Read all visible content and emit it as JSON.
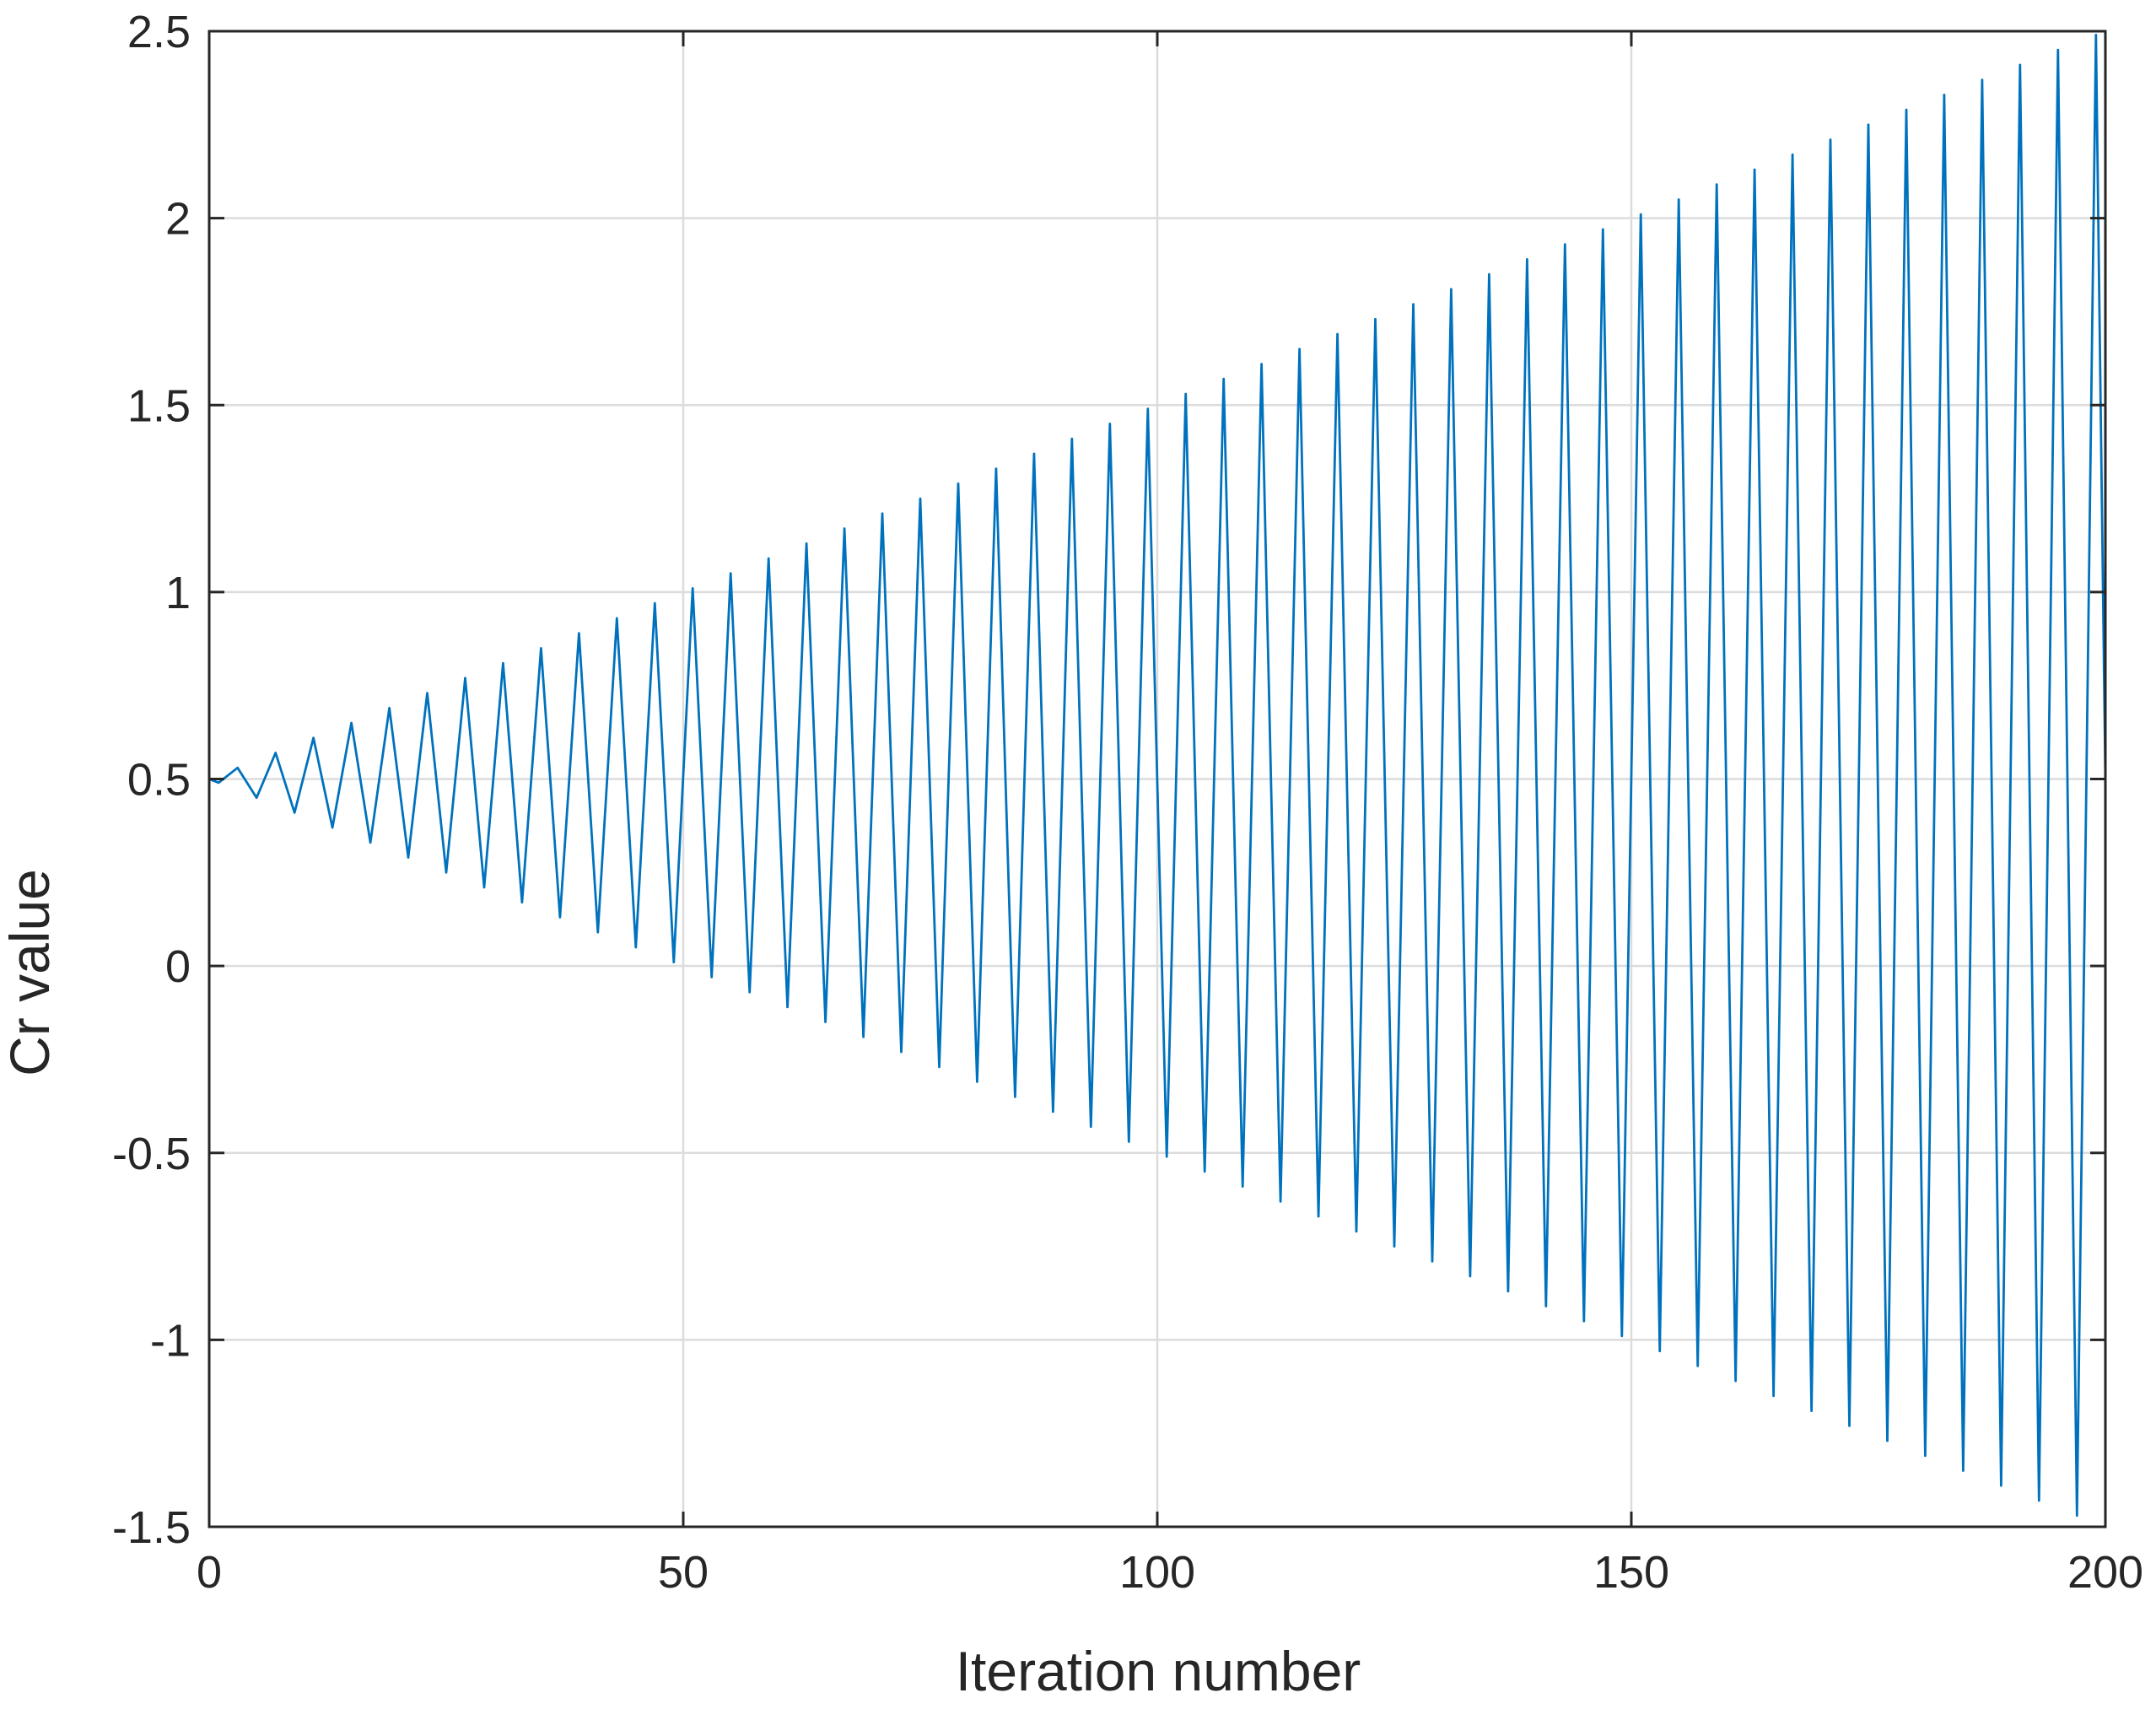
{
  "chart_data": {
    "type": "line",
    "title": "",
    "xlabel": "Iteration number",
    "ylabel": "Cr value",
    "xlim": [
      0,
      200
    ],
    "ylim": [
      -1.5,
      2.5
    ],
    "xticks": [
      0,
      50,
      100,
      150,
      200
    ],
    "yticks": [
      -1.5,
      -1,
      -0.5,
      0,
      0.5,
      1,
      1.5,
      2,
      2.5
    ],
    "xtick_labels": [
      "0",
      "50",
      "100",
      "150",
      "200"
    ],
    "ytick_labels": [
      "-1.5",
      "-1",
      "-0.5",
      "0",
      "0.5",
      "1",
      "1.5",
      "2",
      "2.5"
    ],
    "grid": true,
    "series": [
      {
        "color": "#0072BD",
        "x": [
          0,
          1,
          3,
          5,
          7,
          9,
          11,
          13,
          15,
          17,
          19,
          21,
          23,
          25,
          27,
          29,
          31,
          33,
          35,
          37,
          39,
          41,
          43,
          45,
          47,
          49,
          51,
          53,
          55,
          57,
          59,
          61,
          63,
          65,
          67,
          69,
          71,
          73,
          75,
          77,
          79,
          81,
          83,
          85,
          87,
          89,
          91,
          93,
          95,
          97,
          99,
          101,
          103,
          105,
          107,
          109,
          111,
          113,
          115,
          117,
          119,
          121,
          123,
          125,
          127,
          129,
          131,
          133,
          135,
          137,
          139,
          141,
          143,
          145,
          147,
          149,
          151,
          153,
          155,
          157,
          159,
          161,
          163,
          165,
          167,
          169,
          171,
          173,
          175,
          177,
          179,
          181,
          183,
          185,
          187,
          189,
          191,
          193,
          195,
          197,
          199,
          200
        ],
        "y": [
          0.5,
          0.49,
          0.53,
          0.45,
          0.57,
          0.41,
          0.61,
          0.37,
          0.65,
          0.33,
          0.69,
          0.29,
          0.73,
          0.25,
          0.77,
          0.21,
          0.81,
          0.17,
          0.85,
          0.13,
          0.89,
          0.09,
          0.93,
          0.05,
          0.97,
          0.01,
          1.01,
          -0.03,
          1.05,
          -0.07,
          1.09,
          -0.11,
          1.13,
          -0.15,
          1.17,
          -0.19,
          1.21,
          -0.23,
          1.25,
          -0.27,
          1.29,
          -0.31,
          1.33,
          -0.35,
          1.37,
          -0.39,
          1.41,
          -0.43,
          1.45,
          -0.47,
          1.49,
          -0.51,
          1.53,
          -0.55,
          1.57,
          -0.59,
          1.61,
          -0.63,
          1.65,
          -0.67,
          1.69,
          -0.71,
          1.73,
          -0.75,
          1.77,
          -0.79,
          1.81,
          -0.83,
          1.85,
          -0.87,
          1.89,
          -0.91,
          1.93,
          -0.95,
          1.97,
          -0.99,
          2.01,
          -1.03,
          2.05,
          -1.07,
          2.09,
          -1.11,
          2.13,
          -1.15,
          2.17,
          -1.19,
          2.21,
          -1.23,
          2.25,
          -1.27,
          2.29,
          -1.31,
          2.33,
          -1.35,
          2.37,
          -1.39,
          2.41,
          -1.43,
          2.45,
          -1.47,
          2.49,
          0.5
        ]
      }
    ]
  }
}
